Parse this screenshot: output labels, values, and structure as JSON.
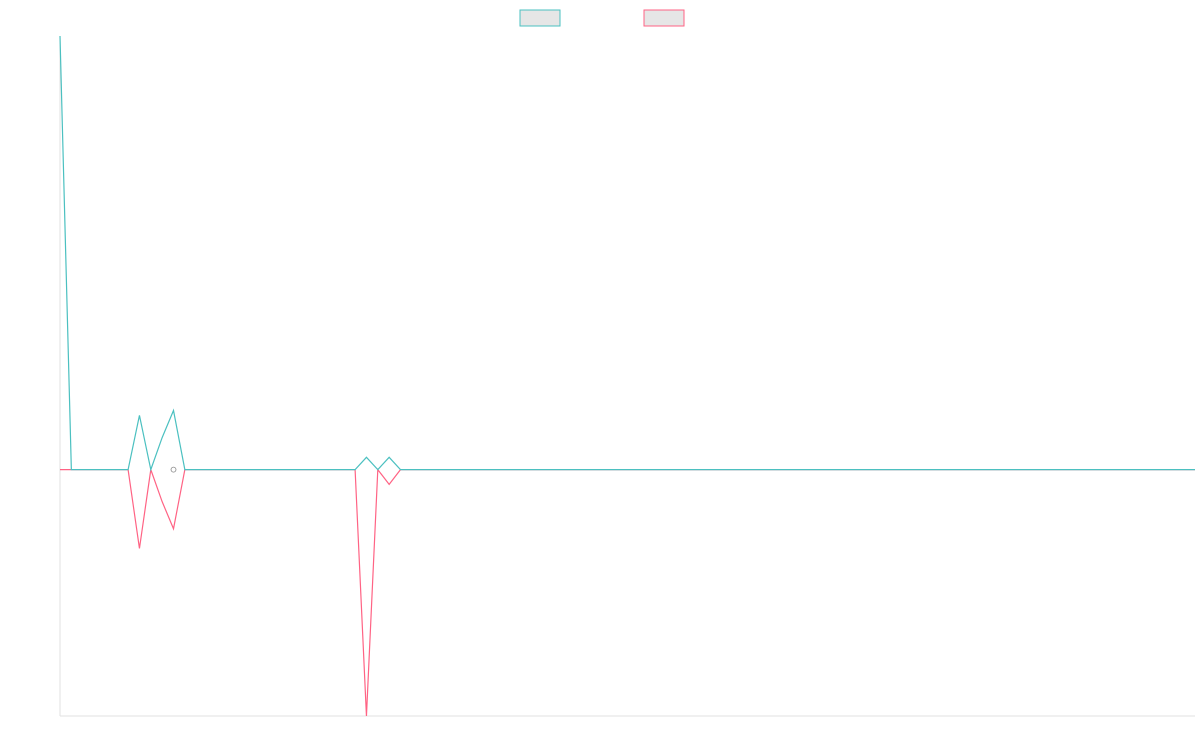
{
  "chart_data": {
    "type": "line",
    "title": "",
    "xlabel": "",
    "ylabel": "",
    "grid": false,
    "legend_position": "top-center",
    "x": [
      0,
      1,
      2,
      3,
      4,
      5,
      6,
      7,
      8,
      9,
      10,
      11,
      12,
      13,
      14,
      15,
      16,
      17,
      18,
      19,
      20,
      21,
      22,
      23,
      24,
      25,
      26,
      27,
      28,
      29,
      30,
      31,
      32,
      33,
      34,
      35,
      36,
      37,
      38,
      39,
      40,
      41,
      42,
      43,
      44,
      45,
      46,
      47,
      48,
      49,
      50,
      51,
      52,
      53,
      54,
      55,
      56,
      57,
      58,
      59,
      60,
      61,
      62,
      63,
      64,
      65,
      66,
      67,
      68,
      69,
      70,
      71,
      72,
      73,
      74,
      75,
      76,
      77,
      78,
      79,
      80,
      81,
      82,
      83,
      84,
      85,
      86,
      87,
      88,
      89,
      90,
      91,
      92,
      93,
      94,
      95,
      96,
      97,
      98,
      99,
      100
    ],
    "xlim": [
      0,
      100
    ],
    "ylim": [
      -50,
      88
    ],
    "series": [
      {
        "name": "",
        "color": "#4bc0c0",
        "fill": "#e6e6e6",
        "values": [
          88,
          0,
          0,
          0,
          0,
          0,
          0,
          11,
          0,
          6.5,
          12,
          0,
          0,
          0,
          0,
          0,
          0,
          0,
          0,
          0,
          0,
          0,
          0,
          0,
          0,
          0,
          0,
          2.5,
          0,
          2.5,
          0,
          0,
          0,
          0,
          0,
          0,
          0,
          0,
          0,
          0,
          0,
          0,
          0,
          0,
          0,
          0,
          0,
          0,
          0,
          0,
          0,
          0,
          0,
          0,
          0,
          0,
          0,
          0,
          0,
          0,
          0,
          0,
          0,
          0,
          0,
          0,
          0,
          0,
          0,
          0,
          0,
          0,
          0,
          0,
          0,
          0,
          0,
          0,
          0,
          0,
          0,
          0,
          0,
          0,
          0,
          0,
          0,
          0,
          0,
          0,
          0,
          0,
          0,
          0,
          0,
          0,
          0,
          0,
          0,
          0,
          0
        ]
      },
      {
        "name": "",
        "color": "#ff6384",
        "fill": "#e6e6e6",
        "values": [
          0,
          0,
          0,
          0,
          0,
          0,
          0,
          -16,
          0,
          -6.5,
          -12,
          0,
          0,
          0,
          0,
          0,
          0,
          0,
          0,
          0,
          0,
          0,
          0,
          0,
          0,
          0,
          0,
          -50,
          0,
          -3,
          0,
          0,
          0,
          0,
          0,
          0,
          0,
          0,
          0,
          0,
          0,
          0,
          0,
          0,
          0,
          0,
          0,
          0,
          0,
          0,
          0,
          0,
          0,
          0,
          0,
          0,
          0,
          0,
          0,
          0,
          0,
          0,
          0,
          0,
          0,
          0,
          0,
          0,
          0,
          0,
          0,
          0,
          0,
          0,
          0,
          0,
          0,
          0,
          0,
          0,
          0,
          0,
          0,
          0,
          0,
          0,
          0,
          0,
          0,
          0,
          0,
          0,
          0,
          0,
          0,
          0,
          0,
          0,
          0,
          0,
          0
        ]
      }
    ]
  }
}
